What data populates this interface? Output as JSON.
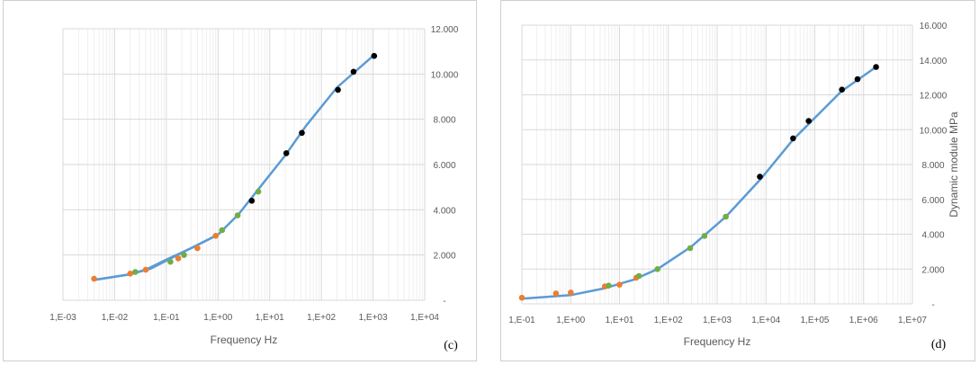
{
  "chart_data": [
    {
      "type": "scatter",
      "panel_label": "(c)",
      "xlabel": "Frequency  Hz",
      "ylabel": "Dynamic module  MPa",
      "x_scale": "log",
      "xlim": [
        0.001,
        10000
      ],
      "ylim": [
        0,
        12000
      ],
      "x_tick_labels": [
        "1,E-03",
        "1,E-02",
        "1,E-01",
        "1,E+00",
        "1,E+01",
        "1,E+02",
        "1,E+03",
        "1,E+04"
      ],
      "y_tick_labels": [
        "-",
        "2.000",
        "4.000",
        "6.000",
        "8.000",
        "10.000",
        "12.000"
      ],
      "grid": true,
      "colors": {
        "line": "#5B9BD5",
        "orange": "#ED7D31",
        "green": "#70AD47",
        "black": "#000000"
      },
      "series": [
        {
          "style": "line",
          "color": "#5B9BD5",
          "x": [
            0.004,
            0.02,
            0.04,
            0.1,
            0.3,
            1.0
          ],
          "y": [
            900,
            1150,
            1350,
            1800,
            2300,
            2900
          ]
        },
        {
          "style": "line",
          "color": "#5B9BD5",
          "x": [
            0.004,
            0.02,
            0.05,
            0.2,
            1.0,
            2.5,
            6,
            20,
            50,
            200,
            1000
          ],
          "y": [
            900,
            1150,
            1400,
            2100,
            2900,
            3800,
            4900,
            6400,
            7700,
            9400,
            10800
          ]
        },
        {
          "style": "markers",
          "color": "#ED7D31",
          "x": [
            0.004,
            0.02,
            0.04,
            0.17,
            0.4,
            0.9
          ],
          "y": [
            950,
            1180,
            1350,
            1850,
            2300,
            2850
          ]
        },
        {
          "style": "markers",
          "color": "#70AD47",
          "x": [
            0.025,
            0.12,
            0.22,
            1.2,
            2.4,
            6.0
          ],
          "y": [
            1250,
            1700,
            2000,
            3100,
            3750,
            4800
          ]
        },
        {
          "style": "markers",
          "color": "#000000",
          "x": [
            4.5,
            21,
            42,
            210,
            420,
            1050
          ],
          "y": [
            4400,
            6500,
            7400,
            9300,
            10100,
            10800
          ]
        }
      ]
    },
    {
      "type": "scatter",
      "panel_label": "(d)",
      "xlabel": "Frequency  Hz",
      "ylabel": "Dynamic module  MPa",
      "x_scale": "log",
      "xlim": [
        0.1,
        10000000
      ],
      "ylim": [
        0,
        16000
      ],
      "x_tick_labels": [
        "1,E-01",
        "1,E+00",
        "1,E+01",
        "1,E+02",
        "1,E+03",
        "1,E+04",
        "1,E+05",
        "1,E+06",
        "1,E+07"
      ],
      "y_tick_labels": [
        "-",
        "2.000",
        "4.000",
        "6.000",
        "8.000",
        "10.000",
        "12.000",
        "14.000",
        "16.000"
      ],
      "grid": true,
      "colors": {
        "line": "#5B9BD5",
        "orange": "#ED7D31",
        "green": "#70AD47",
        "black": "#000000"
      },
      "series": [
        {
          "style": "line",
          "color": "#5B9BD5",
          "x": [
            0.1,
            1,
            5,
            20,
            60,
            300,
            1500,
            8000,
            35000,
            350000,
            1800000
          ],
          "y": [
            300,
            500,
            900,
            1400,
            2000,
            3300,
            5000,
            7200,
            9400,
            12200,
            13600
          ]
        },
        {
          "style": "markers",
          "color": "#ED7D31",
          "x": [
            0.1,
            0.5,
            1.0,
            5,
            10,
            22
          ],
          "y": [
            350,
            600,
            650,
            1000,
            1100,
            1500
          ]
        },
        {
          "style": "markers",
          "color": "#70AD47",
          "x": [
            6,
            25,
            60,
            280,
            550,
            1500
          ],
          "y": [
            1050,
            1600,
            2000,
            3200,
            3900,
            5000
          ]
        },
        {
          "style": "markers",
          "color": "#000000",
          "x": [
            7500,
            36000,
            75000,
            360000,
            750000,
            1800000
          ],
          "y": [
            7300,
            9500,
            10500,
            12300,
            12900,
            13600
          ]
        }
      ]
    }
  ]
}
